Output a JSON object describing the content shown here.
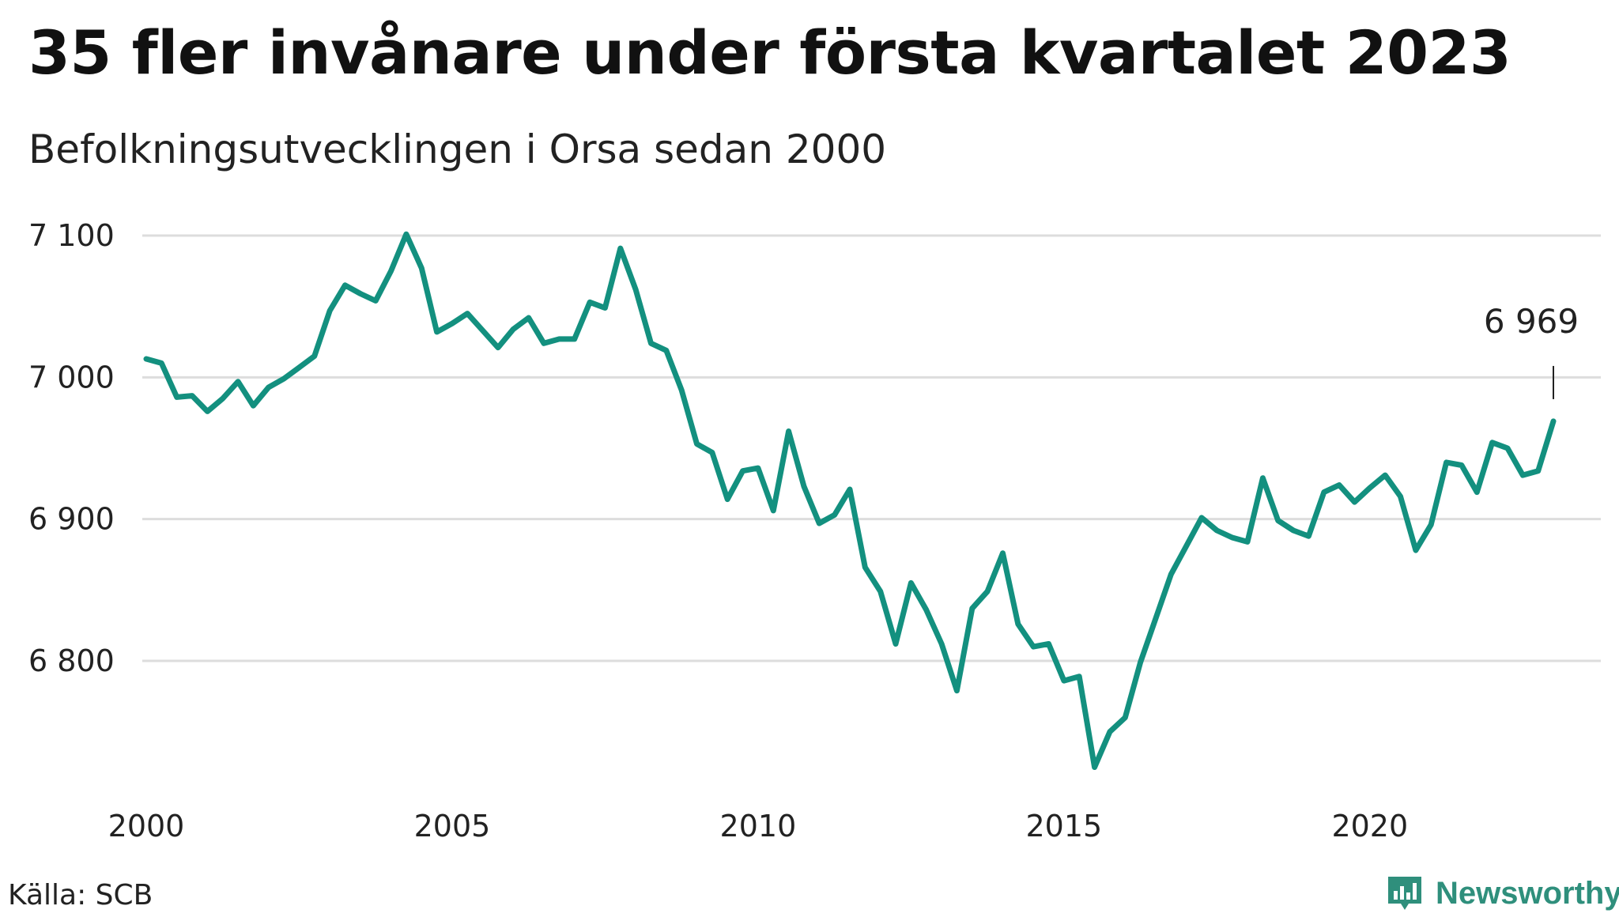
{
  "title": "35 fler invånare under första kvartalet 2023",
  "subtitle": "Befolkningsutvecklingen i Orsa sedan 2000",
  "source": "Källa: SCB",
  "brand": {
    "name": "Newsworthy",
    "color": "#2f8f7c",
    "icon": "newsworthy-logo-icon"
  },
  "line_color": "#13907f",
  "grid_color": "#dddddd",
  "chart_data": {
    "type": "line",
    "title": "35 fler invånare under första kvartalet 2023",
    "subtitle": "Befolkningsutvecklingen i Orsa sedan 2000",
    "xlabel": "",
    "ylabel": "",
    "ylim": [
      6715,
      7110
    ],
    "xlim": [
      2000,
      2024.2
    ],
    "y_ticks": [
      {
        "value": 7100,
        "label": "7 100"
      },
      {
        "value": 7000,
        "label": "7 000"
      },
      {
        "value": 6900,
        "label": "6 900"
      },
      {
        "value": 6800,
        "label": "6 800"
      }
    ],
    "x_ticks": [
      {
        "value": 2000,
        "label": "2000"
      },
      {
        "value": 2005,
        "label": "2005"
      },
      {
        "value": 2010,
        "label": "2010"
      },
      {
        "value": 2015,
        "label": "2015"
      },
      {
        "value": 2020,
        "label": "2020"
      }
    ],
    "grid": true,
    "annotation": {
      "x": 2023.0,
      "y": 6969,
      "label": "6 969"
    },
    "series": [
      {
        "x": [
          2000.0,
          2000.25,
          2000.5,
          2000.75,
          2001.0,
          2001.25,
          2001.5,
          2001.75,
          2002.0,
          2002.25,
          2002.5,
          2002.75,
          2003.0,
          2003.25,
          2003.5,
          2003.75,
          2004.0,
          2004.25,
          2004.5,
          2004.75,
          2005.0,
          2005.25,
          2005.5,
          2005.75,
          2006.0,
          2006.25,
          2006.5,
          2006.75,
          2007.0,
          2007.25,
          2007.5,
          2007.75,
          2008.0,
          2008.25,
          2008.5,
          2008.75,
          2009.0,
          2009.25,
          2009.5,
          2009.75,
          2010.0,
          2010.25,
          2010.5,
          2010.75,
          2011.0,
          2011.25,
          2011.5,
          2011.75,
          2012.0,
          2012.25,
          2012.5,
          2012.75,
          2013.0,
          2013.25,
          2013.5,
          2013.75,
          2014.0,
          2014.25,
          2014.5,
          2014.75,
          2015.0,
          2015.25,
          2015.5,
          2015.75,
          2016.0,
          2016.25,
          2016.5,
          2016.75,
          2017.0,
          2017.25,
          2017.5,
          2017.75,
          2018.0,
          2018.25,
          2018.5,
          2018.75,
          2019.0,
          2019.25,
          2019.5,
          2019.75,
          2020.0,
          2020.25,
          2020.5,
          2020.75,
          2021.0,
          2021.25,
          2021.5,
          2021.75,
          2022.0,
          2022.25,
          2022.5,
          2022.75,
          2023.0
        ],
        "values": [
          7013,
          7010,
          6986,
          6987,
          6976,
          6985,
          6997,
          6980,
          6993,
          6999,
          7007,
          7015,
          7047,
          7065,
          7059,
          7054,
          7075,
          7101,
          7077,
          7032,
          7038,
          7045,
          7033,
          7021,
          7034,
          7042,
          7024,
          7027,
          7027,
          7053,
          7049,
          7091,
          7062,
          7024,
          7019,
          6991,
          6953,
          6947,
          6914,
          6934,
          6936,
          6906,
          6962,
          6923,
          6897,
          6903,
          6921,
          6866,
          6849,
          6812,
          6855,
          6836,
          6812,
          6779,
          6837,
          6849,
          6876,
          6826,
          6810,
          6812,
          6786,
          6789,
          6725,
          6750,
          6760,
          6799,
          6830,
          6861,
          6881,
          6901,
          6892,
          6887,
          6884,
          6929,
          6899,
          6892,
          6888,
          6919,
          6924,
          6912,
          6922,
          6931,
          6916,
          6878,
          6896,
          6940,
          6938,
          6919,
          6954,
          6950,
          6931,
          6934,
          6969
        ]
      }
    ]
  }
}
